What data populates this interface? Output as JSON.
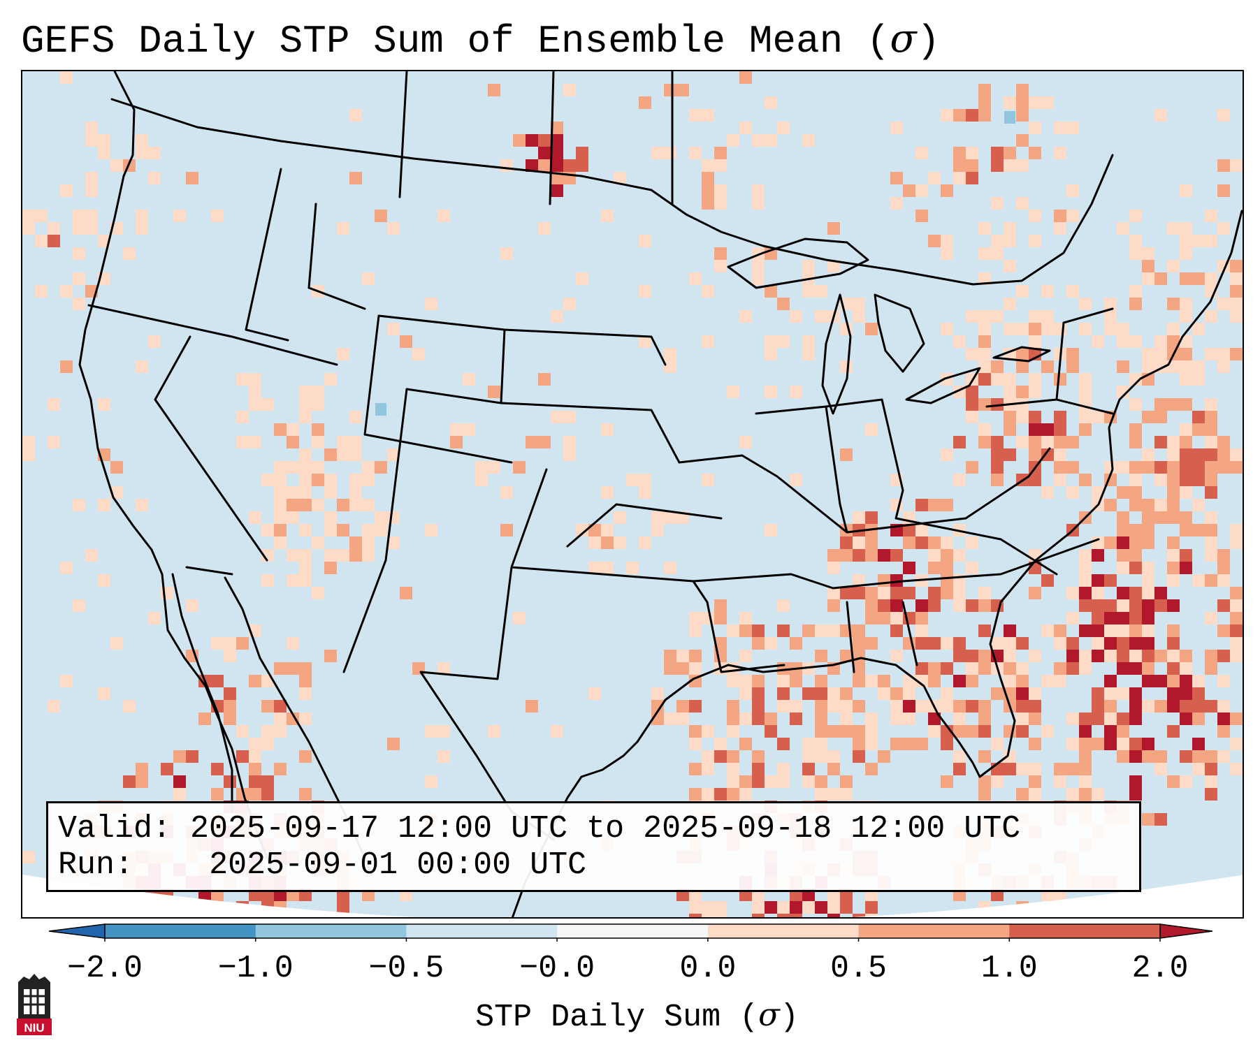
{
  "title": {
    "text_before": "GEFS Daily STP Sum of Ensemble Mean (",
    "symbol": "σ",
    "text_after": ")"
  },
  "info": {
    "valid_label": "Valid:",
    "valid_value": "2025-09-17 12:00 UTC to 2025-09-18 12:00 UTC",
    "run_label": "Run:",
    "run_value": "2025-09-01 00:00 UTC"
  },
  "colorbar": {
    "label_before": "STP Daily Sum (",
    "symbol": "σ",
    "label_after": ")",
    "ticks": [
      "−2.0",
      "−1.0",
      "−0.5",
      "−0.0",
      "0.0",
      "0.5",
      "1.0",
      "2.0"
    ],
    "bins": [
      {
        "range": "below -2.0",
        "color": "#2166ac"
      },
      {
        "range": "-2.0 to -1.0",
        "color": "#4393c3"
      },
      {
        "range": "-1.0 to -0.5",
        "color": "#92c5de"
      },
      {
        "range": "-0.5 to 0.0",
        "color": "#d1e5f0"
      },
      {
        "range": "0.0",
        "color": "#f7f7f7"
      },
      {
        "range": "0.0 to 0.5",
        "color": "#fddbc7"
      },
      {
        "range": "0.5 to 1.0",
        "color": "#f4a582"
      },
      {
        "range": "1.0 to 2.0",
        "color": "#d6604d"
      },
      {
        "range": "above 2.0",
        "color": "#b2182b"
      }
    ],
    "extend": "both"
  },
  "map": {
    "projection": "lambert-conformal",
    "region": "CONUS",
    "background_value_color": "#d1e5f0",
    "outside_domain_color": "#ffffff",
    "positive_anomaly_regions": [
      {
        "region": "West Virginia / western Virginia",
        "level": "1.0 to 2.0"
      },
      {
        "region": "Western Atlantic east of Florida / Bahamas",
        "level": "above 2.0"
      },
      {
        "region": "Gulf of Mexico",
        "level": "1.0 to 2.0"
      },
      {
        "region": "North Dakota / Montana border",
        "level": "above 2.0"
      },
      {
        "region": "Southern Alabama / Georgia",
        "level": "1.0 to 2.0"
      },
      {
        "region": "Gulf of California / Sonora",
        "level": "0.5 to 1.0"
      },
      {
        "region": "Southern Ontario / Quebec",
        "level": "0.0 to 0.5"
      }
    ],
    "negative_anomaly_regions": [
      {
        "region": "Central Colorado",
        "level": "-1.0 to -0.5"
      },
      {
        "region": "Northern Ontario",
        "level": "-1.0 to -0.5"
      }
    ]
  },
  "logo": {
    "text": "NIU"
  }
}
